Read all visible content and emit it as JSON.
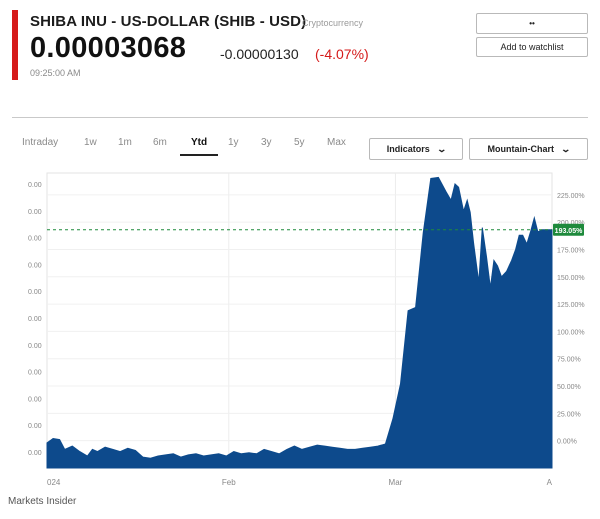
{
  "header": {
    "title": "SHIBA INU - US-DOLLAR (SHIB - USD)",
    "category": "Cryptocurrency",
    "price": "0.00003068",
    "change": "-0.00000130",
    "change_pct": "(-4.07%)",
    "time": "09:25:00 AM",
    "accent_color": "#d51a1a"
  },
  "actions": {
    "top_button": "••",
    "watchlist": "Add to watchlist"
  },
  "ranges": [
    "Intraday",
    "1w",
    "1m",
    "6m",
    "Ytd",
    "1y",
    "3y",
    "5y",
    "Max"
  ],
  "active_range": "Ytd",
  "toolbar": {
    "indicators": "Indicators",
    "chart_type": "Mountain-Chart"
  },
  "chart_data": {
    "type": "area",
    "color": "#0d4a8c",
    "xlabel": "",
    "ylabel": "",
    "x_tick_labels": [
      "024",
      "Feb",
      "Mar",
      "A"
    ],
    "y_left_labels": [
      "0.00",
      "0.00",
      "0.00",
      "0.00",
      "0.00",
      "0.00",
      "0.00",
      "0.00",
      "0.00",
      "0.00",
      "0.00"
    ],
    "y_right_labels": [
      "225.00%",
      "200.00%",
      "175.00%",
      "150.00%",
      "125.00%",
      "100.00%",
      "75.00%",
      "50.00%",
      "25.00%",
      "0.00%"
    ],
    "y_right_values": [
      225,
      200,
      175,
      150,
      125,
      100,
      75,
      50,
      25,
      0
    ],
    "ylim": [
      -25,
      245
    ],
    "current_value": 193.05,
    "current_label": "193.05%",
    "marker_color": "#1e8a3c",
    "grid": true,
    "series": [
      {
        "x": [
          0,
          0.012,
          0.025,
          0.035,
          0.05,
          0.065,
          0.08,
          0.09,
          0.1,
          0.115,
          0.13,
          0.145,
          0.16,
          0.175,
          0.19,
          0.205,
          0.22,
          0.235,
          0.25,
          0.265,
          0.28,
          0.295,
          0.31,
          0.325,
          0.34,
          0.355,
          0.37,
          0.385,
          0.4,
          0.415,
          0.43,
          0.445,
          0.46,
          0.475,
          0.49,
          0.505,
          0.52,
          0.535,
          0.55,
          0.565,
          0.58,
          0.595,
          0.61,
          0.625,
          0.64,
          0.655,
          0.67,
          0.685,
          0.7,
          0.715,
          0.73,
          0.745,
          0.76,
          0.775,
          0.79,
          0.8,
          0.808,
          0.815,
          0.825,
          0.832,
          0.838,
          0.845,
          0.855,
          0.862,
          0.87,
          0.878,
          0.885,
          0.892,
          0.9,
          0.91,
          0.92,
          0.928,
          0.935,
          0.942,
          0.95,
          0.958,
          0.965,
          0.972,
          0.98,
          0.987,
          0.993,
          1.0
        ],
        "y": [
          -2,
          2,
          1,
          -8,
          -5,
          -10,
          -14,
          -8,
          -10,
          -6,
          -8,
          -10,
          -7,
          -9,
          -15,
          -16,
          -14,
          -13,
          -12,
          -15,
          -13,
          -12,
          -14,
          -13,
          -12,
          -14,
          -10,
          -12,
          -11,
          -12,
          -8,
          -10,
          -12,
          -8,
          -5,
          -8,
          -6,
          -4,
          -5,
          -6,
          -7,
          -8,
          -8,
          -7,
          -6,
          -5,
          -3,
          20,
          52,
          119,
          122,
          190,
          240,
          241,
          228,
          220,
          235,
          232,
          210,
          220,
          209,
          180,
          145,
          195,
          169,
          140,
          165,
          160,
          150,
          155,
          165,
          175,
          188,
          188,
          180,
          192,
          204,
          191,
          193,
          193,
          193,
          193
        ]
      }
    ]
  },
  "footer": {
    "source": "Markets Insider"
  }
}
